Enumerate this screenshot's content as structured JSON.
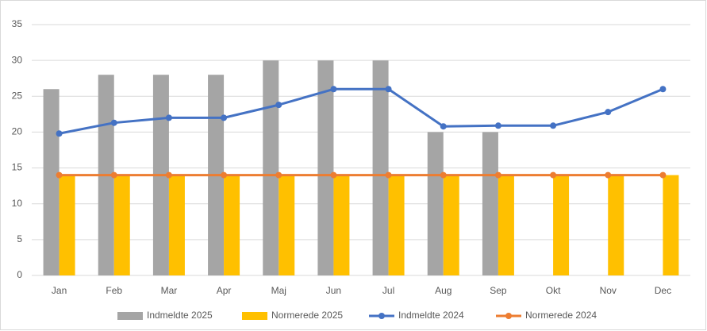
{
  "chart_data": {
    "type": "combo",
    "categories": [
      "Jan",
      "Feb",
      "Mar",
      "Apr",
      "Maj",
      "Jun",
      "Jul",
      "Aug",
      "Sep",
      "Okt",
      "Nov",
      "Dec"
    ],
    "series": [
      {
        "name": "Indmeldte 2025",
        "type": "bar",
        "color": "#a5a5a5",
        "values": [
          26,
          28,
          28,
          28,
          30,
          30,
          30,
          20,
          20,
          null,
          null,
          null
        ]
      },
      {
        "name": "Normerede 2025",
        "type": "bar",
        "color": "#ffc000",
        "values": [
          14,
          14,
          14,
          14,
          14,
          14,
          14,
          14,
          14,
          14,
          14,
          14
        ]
      },
      {
        "name": "Indmeldte 2024",
        "type": "line",
        "color": "#4472c4",
        "values": [
          19.8,
          21.3,
          22,
          22,
          23.8,
          26,
          26,
          20.8,
          20.9,
          20.9,
          22.8,
          26
        ]
      },
      {
        "name": "Normerede 2024",
        "type": "line",
        "color": "#ed7d31",
        "values": [
          14,
          14,
          14,
          14,
          14,
          14,
          14,
          14,
          14,
          14,
          14,
          14
        ]
      }
    ],
    "ylim": [
      0,
      35
    ],
    "yticks": [
      0,
      5,
      10,
      15,
      20,
      25,
      30,
      35
    ],
    "grid": true,
    "legend": "bottom"
  }
}
